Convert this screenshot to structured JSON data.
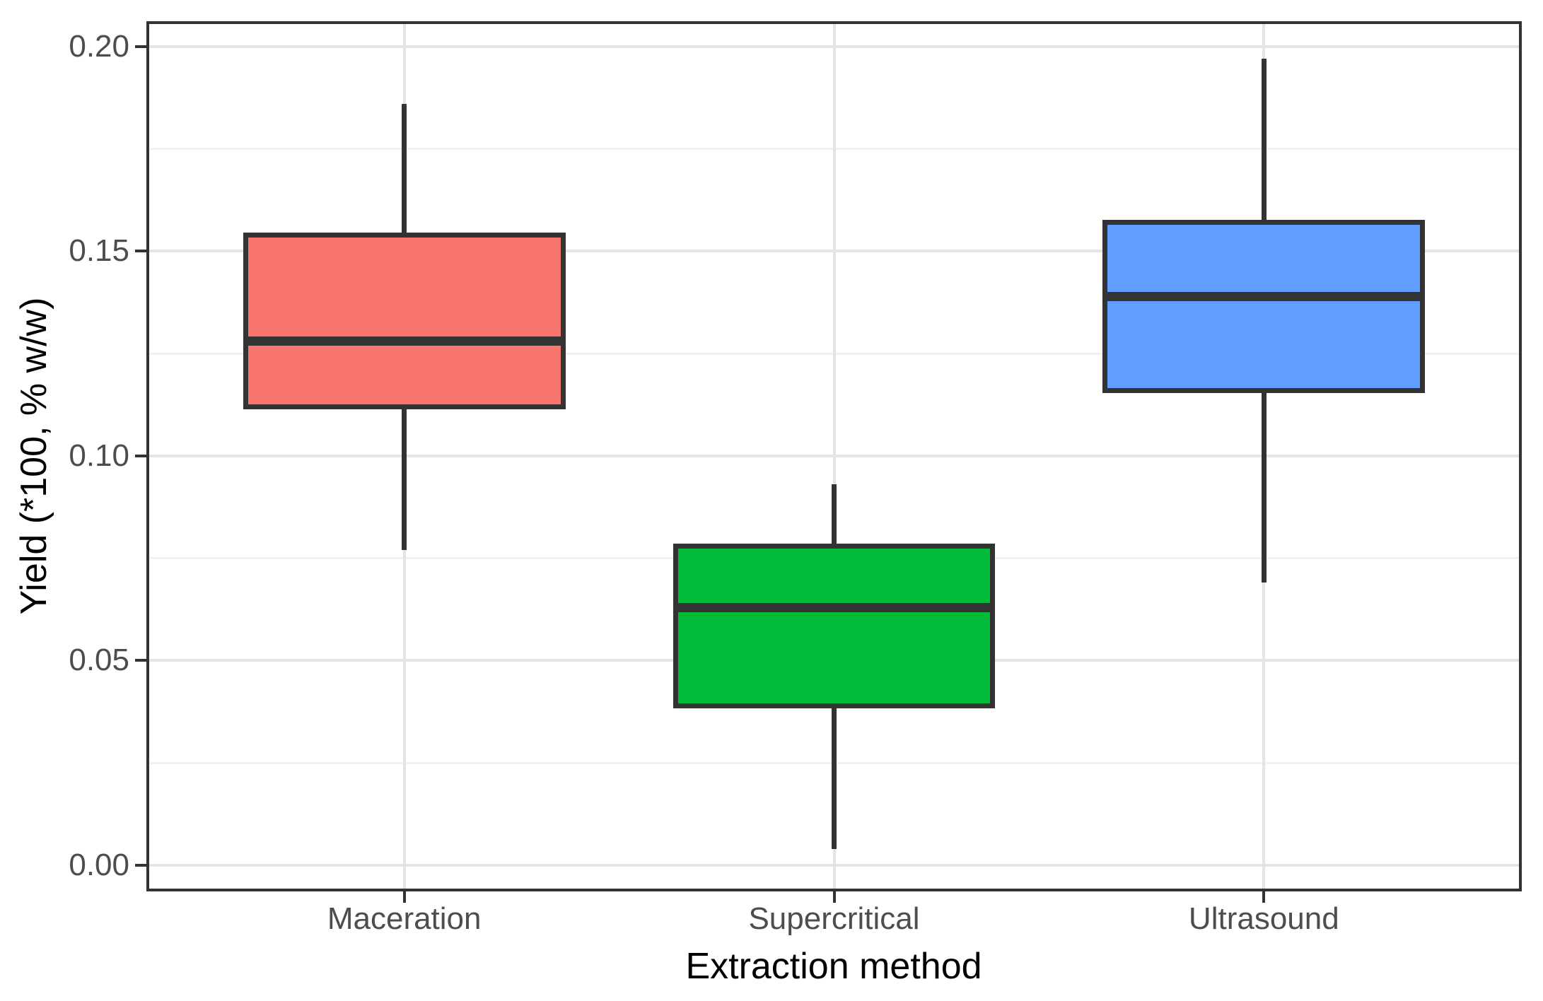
{
  "figure": {
    "background": "#FFFFFF"
  },
  "chart_data": {
    "type": "box",
    "title": "",
    "xlabel": "Extraction method",
    "ylabel": "Yield (*100, % w/w)",
    "categories": [
      "Maceration",
      "Supercritical",
      "Ultrasound"
    ],
    "series": [
      {
        "name": "Maceration",
        "color": "#F8766D",
        "whisker_low": 0.077,
        "q1": 0.112,
        "median": 0.128,
        "q3": 0.154,
        "whisker_high": 0.186
      },
      {
        "name": "Supercritical",
        "color": "#00BA38",
        "whisker_low": 0.004,
        "q1": 0.039,
        "median": 0.063,
        "q3": 0.078,
        "whisker_high": 0.093
      },
      {
        "name": "Ultrasound",
        "color": "#619CFF",
        "whisker_low": 0.069,
        "q1": 0.116,
        "median": 0.139,
        "q3": 0.157,
        "whisker_high": 0.197
      }
    ],
    "y_ticks": [
      0.0,
      0.05,
      0.1,
      0.15,
      0.2
    ],
    "y_tick_labels": [
      "0.00",
      "0.05",
      "0.10",
      "0.15",
      "0.20"
    ],
    "y_minor_ticks": [
      0.025,
      0.075,
      0.125,
      0.175
    ],
    "ylim": [
      -0.0064,
      0.2062
    ],
    "grid": true,
    "legend_position": "none",
    "colors": {
      "panel_background": "#FFFFFF",
      "panel_border": "#333333",
      "grid_major": "#E4E4E4",
      "grid_minor": "#F2F2F2",
      "box_line": "#333333",
      "tick_mark": "#333333",
      "tick_label": "#4D4D4D",
      "axis_title": "#000000"
    }
  }
}
